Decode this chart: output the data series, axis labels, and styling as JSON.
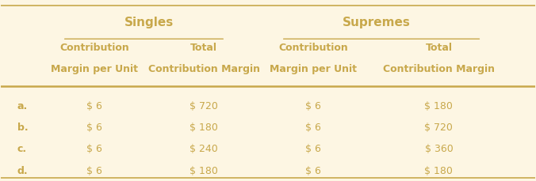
{
  "background_color": "#fdf6e3",
  "header1_singles": "Singles",
  "header1_supremes": "Supremes",
  "col_headers_line1": [
    "Contribution",
    "Total",
    "Contribution",
    "Total"
  ],
  "col_headers_line2": [
    "Margin per Unit",
    "Contribution Margin",
    "Margin per Unit",
    "Contribution Margin"
  ],
  "row_labels": [
    "a.",
    "b.",
    "c.",
    "d."
  ],
  "data": [
    [
      "$ 6",
      "$ 720",
      "$ 6",
      "$ 180"
    ],
    [
      "$ 6",
      "$ 180",
      "$ 6",
      "$ 720"
    ],
    [
      "$ 6",
      "$ 240",
      "$ 6",
      "$ 360"
    ],
    [
      "$ 6",
      "$ 180",
      "$ 6",
      "$ 180"
    ]
  ],
  "header_color": "#c8a84b",
  "text_color": "#c8a84b",
  "line_color": "#c8a84b",
  "font_size": 9,
  "header_font_size": 10
}
